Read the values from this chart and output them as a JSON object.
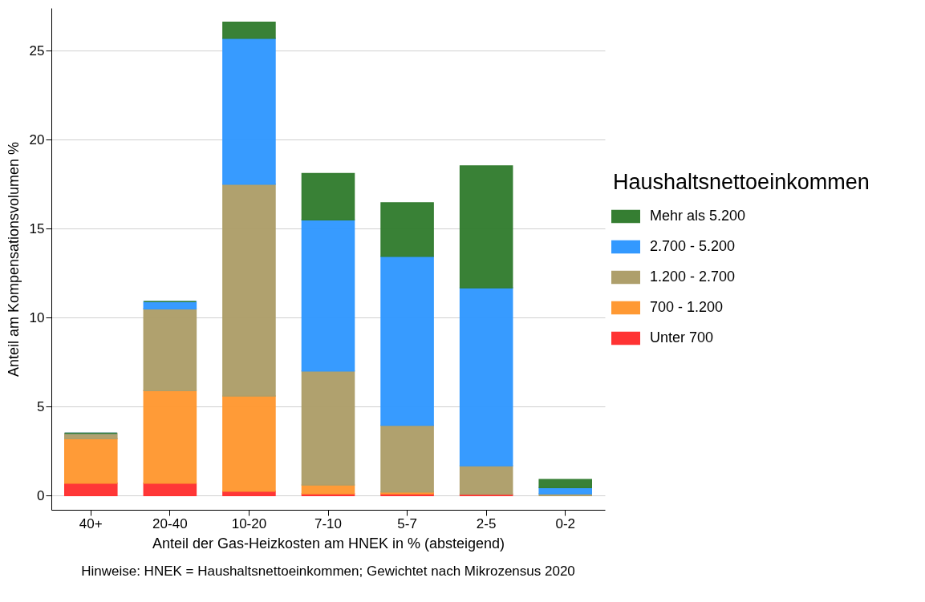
{
  "chart_data": {
    "type": "bar",
    "stacked": true,
    "xlabel": "Anteil der Gas-Heizkosten am HNEK in % (absteigend)",
    "ylabel": "Anteil am Kompensationsvolumen %",
    "legend_title": "Haushaltsnettoeinkommen",
    "legend": "right",
    "grid": "y",
    "categories": [
      "40+",
      "20-40",
      "10-20",
      "7-10",
      "5-7",
      "2-5",
      "0-2"
    ],
    "ylim": [
      -0.8,
      27.4
    ],
    "yticks": [
      0,
      5,
      10,
      15,
      20,
      25
    ],
    "series": [
      {
        "name": "Unter 700",
        "color": "#ff3333",
        "values": [
          0.7,
          0.7,
          0.25,
          0.1,
          0.1,
          0.08,
          0
        ]
      },
      {
        "name": "700 - 1.200",
        "color": "#ff9933",
        "values": [
          2.5,
          5.2,
          5.35,
          0.5,
          0.1,
          null,
          0
        ]
      },
      {
        "name": "1.200 - 2.700",
        "color": "#ae9f6b",
        "values": [
          0.3,
          4.6,
          11.9,
          6.4,
          3.75,
          1.6,
          0.1
        ]
      },
      {
        "name": "2.700 - 5.200",
        "color": "#3399ff",
        "values": [
          0,
          0.4,
          8.2,
          8.5,
          9.5,
          10.0,
          0.35
        ]
      },
      {
        "name": "Mehr als 5.200",
        "color": "#357e32",
        "values": [
          0,
          0,
          0.9,
          2.6,
          3.0,
          6.85,
          0.45
        ]
      }
    ],
    "annotations": [
      "Hinweise: HNEK = Haushaltsnettoeinkommen; Gewichtet nach Mikrozensus 2020"
    ]
  }
}
